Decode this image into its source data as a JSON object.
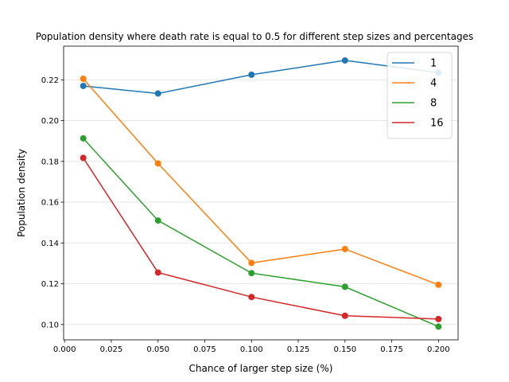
{
  "chart_data": {
    "type": "line",
    "title": "Population density where death rate is equal to 0.5 for different step sizes and percentages",
    "xlabel": "Chance of larger step size (%)",
    "ylabel": "Population density",
    "xlim": [
      -0.0005,
      0.2105
    ],
    "ylim": [
      0.0925,
      0.2365
    ],
    "xticks": [
      0.0,
      0.025,
      0.05,
      0.075,
      0.1,
      0.125,
      0.15,
      0.175,
      0.2
    ],
    "xtick_labels": [
      "0.000",
      "0.025",
      "0.050",
      "0.075",
      "0.100",
      "0.125",
      "0.150",
      "0.175",
      "0.200"
    ],
    "yticks": [
      0.1,
      0.12,
      0.14,
      0.16,
      0.18,
      0.2,
      0.22
    ],
    "ytick_labels": [
      "0.10",
      "0.12",
      "0.14",
      "0.16",
      "0.18",
      "0.20",
      "0.22"
    ],
    "grid": "horizontal",
    "legend_position": "top-right",
    "x": [
      0.01,
      0.05,
      0.1,
      0.15,
      0.2
    ],
    "series": [
      {
        "name": "1",
        "color": "#1f77b4",
        "values": [
          0.217,
          0.2133,
          0.2225,
          0.2295,
          0.2235
        ]
      },
      {
        "name": "4",
        "color": "#ff7f0e",
        "values": [
          0.2205,
          0.179,
          0.1302,
          0.137,
          0.1195
        ]
      },
      {
        "name": "8",
        "color": "#2ca02c",
        "values": [
          0.1913,
          0.151,
          0.1252,
          0.1185,
          0.099
        ]
      },
      {
        "name": "16",
        "color": "#d62728",
        "values": [
          0.1817,
          0.1255,
          0.1135,
          0.1043,
          0.1027
        ]
      }
    ]
  }
}
